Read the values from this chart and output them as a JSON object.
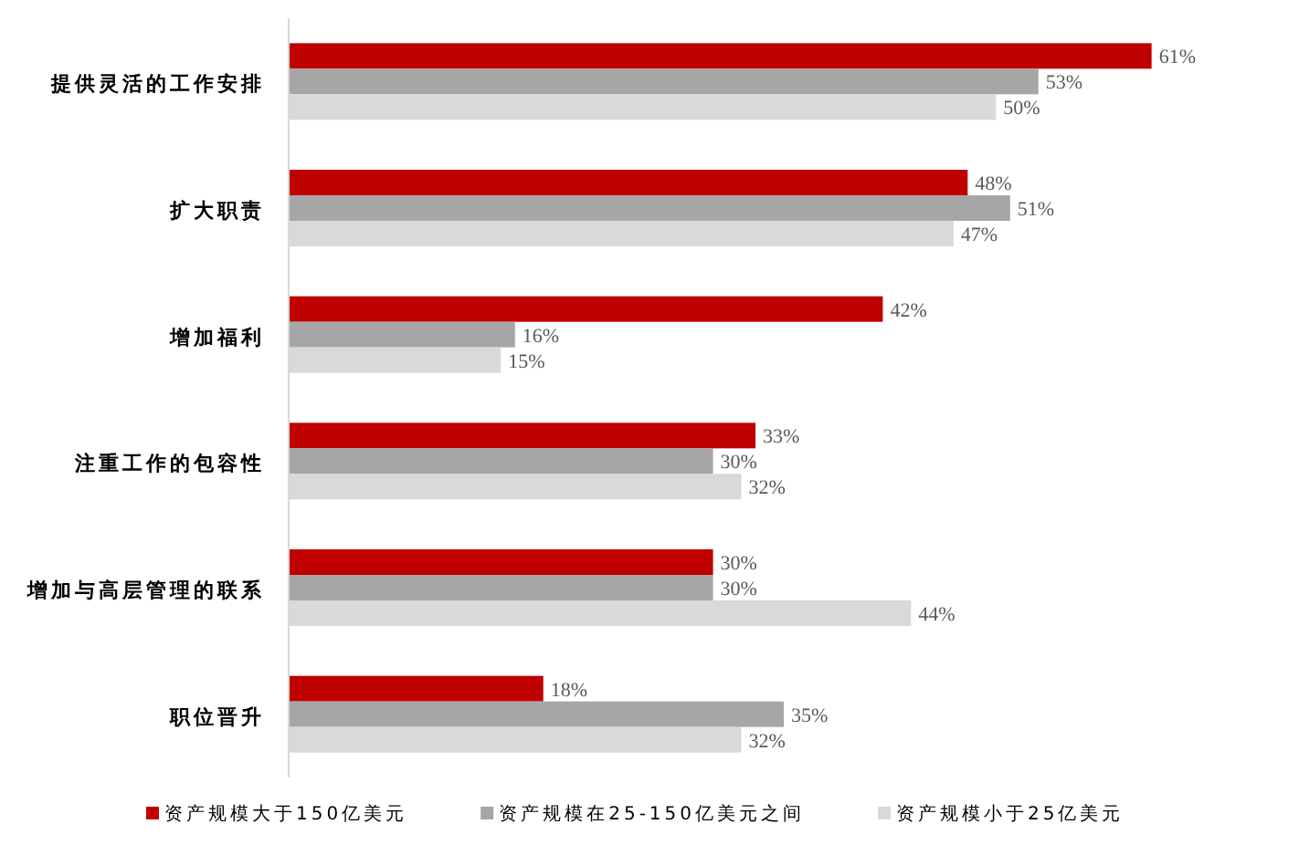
{
  "chart_data": {
    "type": "bar",
    "orientation": "horizontal",
    "categories": [
      "提供灵活的工作安排",
      "扩大职责",
      "增加福利",
      "注重工作的包容性",
      "增加与高层管理的联系",
      "职位晋升"
    ],
    "series": [
      {
        "name": "资产规模大于150亿美元",
        "color": "#c00000",
        "values": [
          61,
          48,
          42,
          33,
          30,
          18
        ],
        "value_labels": [
          "61%",
          "48%",
          "42%",
          "33%",
          "30%",
          "18%"
        ]
      },
      {
        "name": "资产规模在25-150亿美元之间",
        "color": "#a6a6a6",
        "values": [
          53,
          51,
          16,
          30,
          30,
          35
        ],
        "value_labels": [
          "53%",
          "51%",
          "16%",
          "30%",
          "30%",
          "35%"
        ]
      },
      {
        "name": "资产规模小于25亿美元",
        "color": "#d9d9d9",
        "values": [
          50,
          47,
          15,
          32,
          44,
          32
        ],
        "value_labels": [
          "50%",
          "47%",
          "15%",
          "32%",
          "44%",
          "32%"
        ]
      }
    ],
    "legend": "bottom"
  }
}
